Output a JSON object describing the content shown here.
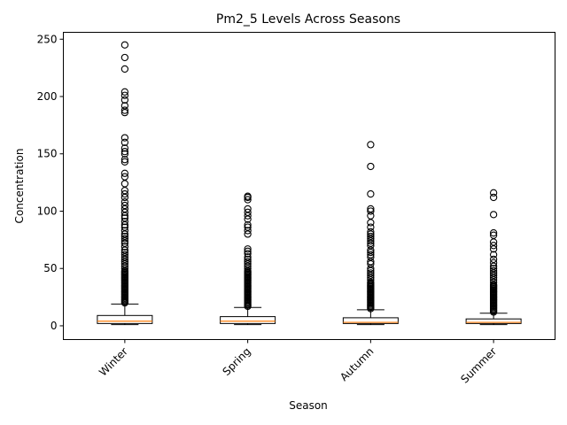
{
  "chart_data": {
    "type": "box",
    "title": "Pm2_5 Levels Across Seasons",
    "xlabel": "Season",
    "ylabel": "Concentration",
    "ylim": [
      -12,
      256
    ],
    "yticks": [
      0,
      50,
      100,
      150,
      200,
      250
    ],
    "categories": [
      "Winter",
      "Spring",
      "Autumn",
      "Summer"
    ],
    "boxes": [
      {
        "category": "Winter",
        "whisker_low": 1,
        "q1": 2,
        "median": 4,
        "q3": 9,
        "whisker_high": 19,
        "outliers": [
          20,
          21,
          22,
          23,
          24,
          25,
          26,
          27,
          28,
          29,
          30,
          31,
          32,
          33,
          34,
          35,
          36,
          37,
          38,
          39,
          40,
          41,
          42,
          43,
          44,
          45,
          46,
          47,
          48,
          50,
          52,
          54,
          56,
          58,
          60,
          62,
          64,
          66,
          69,
          72,
          74,
          76,
          78,
          80,
          83,
          86,
          88,
          91,
          94,
          96,
          99,
          102,
          105,
          108,
          112,
          115,
          118,
          124,
          130,
          133,
          143,
          145,
          150,
          152,
          155,
          160,
          164,
          186,
          188,
          192,
          197,
          201,
          204,
          224,
          234,
          245
        ]
      },
      {
        "category": "Spring",
        "whisker_low": 1,
        "q1": 2,
        "median": 4,
        "q3": 8,
        "whisker_high": 16,
        "outliers": [
          17,
          18,
          19,
          20,
          21,
          22,
          23,
          24,
          25,
          26,
          27,
          28,
          29,
          30,
          31,
          32,
          33,
          34,
          35,
          36,
          37,
          38,
          39,
          40,
          41,
          42,
          43,
          44,
          45,
          46,
          47,
          48,
          50,
          52,
          54,
          56,
          58,
          60,
          63,
          65,
          67,
          80,
          83,
          86,
          88,
          93,
          96,
          99,
          102,
          110,
          112,
          113
        ]
      },
      {
        "category": "Autumn",
        "whisker_low": 1,
        "q1": 2,
        "median": 3,
        "q3": 7,
        "whisker_high": 14,
        "outliers": [
          15,
          16,
          17,
          18,
          19,
          20,
          21,
          22,
          23,
          24,
          25,
          26,
          27,
          28,
          29,
          30,
          31,
          32,
          33,
          34,
          35,
          36,
          37,
          38,
          40,
          42,
          44,
          46,
          48,
          50,
          54,
          56,
          60,
          62,
          64,
          66,
          70,
          72,
          74,
          76,
          78,
          80,
          82,
          86,
          90,
          96,
          100,
          102,
          115,
          139,
          158
        ]
      },
      {
        "category": "Summer",
        "whisker_low": 1,
        "q1": 2,
        "median": 3,
        "q3": 6,
        "whisker_high": 11,
        "outliers": [
          12,
          13,
          14,
          15,
          16,
          17,
          18,
          19,
          20,
          21,
          22,
          23,
          24,
          25,
          26,
          27,
          28,
          29,
          30,
          31,
          32,
          33,
          34,
          35,
          36,
          38,
          40,
          42,
          44,
          46,
          48,
          50,
          52,
          55,
          58,
          62,
          67,
          70,
          73,
          79,
          81,
          97,
          112,
          116
        ]
      }
    ],
    "colors": {
      "median": "#ff7f0e",
      "box": "#000000",
      "axes": "#000000",
      "background": "#ffffff"
    }
  }
}
